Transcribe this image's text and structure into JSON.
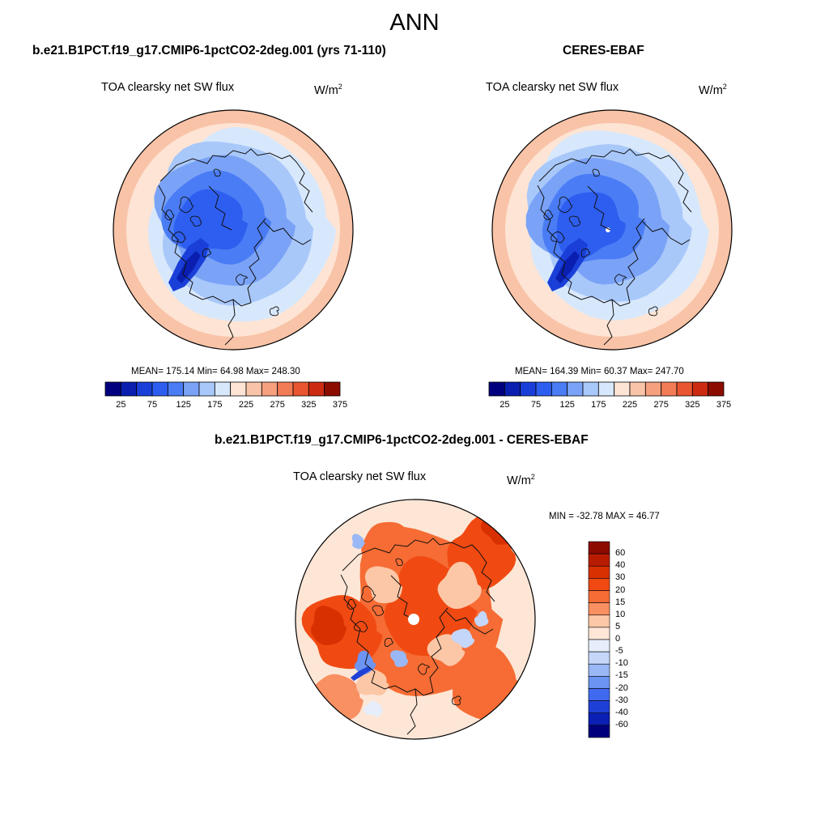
{
  "title": "ANN",
  "panels": [
    {
      "id": "model",
      "header": "b.e21.B1PCT.f19_g17.CMIP6-1pctCO2-2deg.001 (yrs 71-110)",
      "variable": "TOA clearsky net SW flux",
      "units_base": "W/m",
      "units_exp": "2",
      "stats": "MEAN= 175.14  Min=  64.98  Max= 248.30",
      "colorbar_ticks": [
        "25",
        "75",
        "125",
        "175",
        "225",
        "275",
        "325",
        "375"
      ]
    },
    {
      "id": "obs",
      "header": "CERES-EBAF",
      "variable": "TOA clearsky net SW flux",
      "units_base": "W/m",
      "units_exp": "2",
      "stats": "MEAN= 164.39  Min=  60.37  Max= 247.70",
      "colorbar_ticks": [
        "25",
        "75",
        "125",
        "175",
        "225",
        "275",
        "325",
        "375"
      ]
    }
  ],
  "diff": {
    "header": "b.e21.B1PCT.f19_g17.CMIP6-1pctCO2-2deg.001 - CERES-EBAF",
    "variable": "TOA clearsky net SW flux",
    "units_base": "W/m",
    "units_exp": "2",
    "stats": "MIN = -32.78 MAX =  46.77",
    "colorbar_ticks": [
      "60",
      "40",
      "30",
      "20",
      "15",
      "10",
      "5",
      "0",
      "-5",
      "-10",
      "-15",
      "-20",
      "-30",
      "-40",
      "-60"
    ]
  },
  "colors": {
    "abs_scale": [
      "#00007f",
      "#0a1fb0",
      "#1a3fd8",
      "#2e5ef0",
      "#4a7cf5",
      "#7aa3f7",
      "#a9c8fa",
      "#d8e8fc",
      "#fde4d4",
      "#f9c3a8",
      "#f6a07e",
      "#f27c56",
      "#e85530",
      "#cc2b12",
      "#8c0c00"
    ],
    "diff_scale": [
      "#8c0a00",
      "#b81c00",
      "#d83000",
      "#f04a12",
      "#f66c34",
      "#f99062",
      "#fcc7a6",
      "#fde6d6",
      "#e6eefc",
      "#c4d6fa",
      "#9ab8f6",
      "#6c94f2",
      "#3f6af0",
      "#1f40d6",
      "#0a1fb4",
      "#00007c"
    ]
  }
}
